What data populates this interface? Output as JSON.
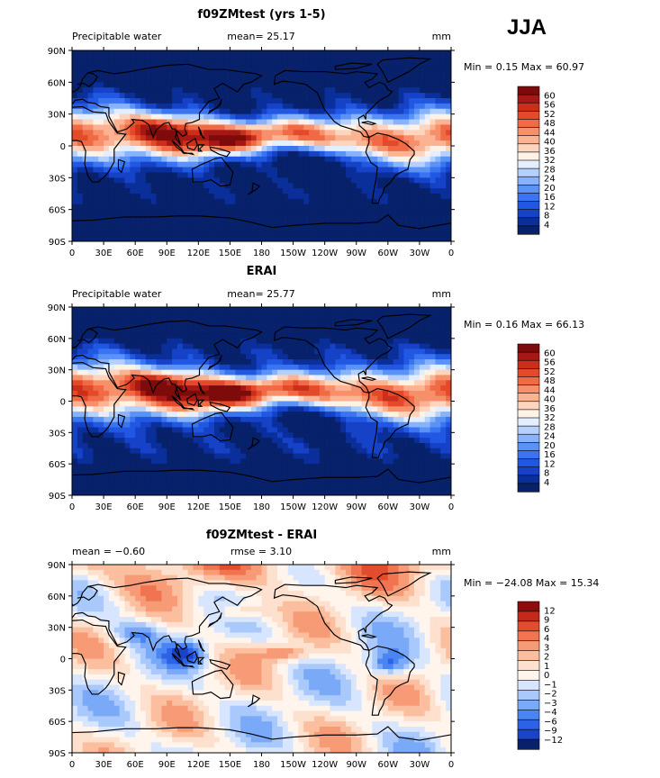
{
  "season": "JJA",
  "palette_main": [
    "#08216b",
    "#0b2f9a",
    "#1642c8",
    "#2158e3",
    "#3a74f0",
    "#5a92f6",
    "#86b3fb",
    "#b4d1fd",
    "#e3eefe",
    "#fef1e6",
    "#fdd4bd",
    "#fbb393",
    "#f7906a",
    "#f06a46",
    "#e44a2a",
    "#cb2f1a",
    "#a51813",
    "#7e0b0b"
  ],
  "palette_diff": [
    "#08216b",
    "#1a44c8",
    "#2d62e6",
    "#4b85f2",
    "#7aa9f8",
    "#a9c9fc",
    "#d7e6fe",
    "#fff5ec",
    "#fde0cd",
    "#fbbf9f",
    "#f79a76",
    "#f07450",
    "#e14d2d",
    "#c4291a",
    "#8f0c0c"
  ],
  "panels": [
    {
      "title": "f09ZMtest (yrs 1-5)",
      "left_label": "Precipitable water",
      "center_label": "mean=  25.17",
      "units": "mm",
      "minmax": "Min =   0.15 Max =  60.97",
      "colorbar_labels": [
        "60",
        "56",
        "52",
        "48",
        "44",
        "40",
        "36",
        "32",
        "28",
        "24",
        "20",
        "16",
        "12",
        "8",
        "4"
      ],
      "x_ticks": [
        "0",
        "30E",
        "60E",
        "90E",
        "120E",
        "150E",
        "180",
        "150W",
        "120W",
        "90W",
        "60W",
        "30W",
        "0"
      ],
      "y_ticks": [
        "90N",
        "60N",
        "30N",
        "0",
        "30S",
        "60S",
        "90S"
      ]
    },
    {
      "title": "ERAI",
      "left_label": "Precipitable water",
      "center_label": "mean=  25.77",
      "units": "mm",
      "minmax": "Min =   0.16 Max =  66.13",
      "colorbar_labels": [
        "60",
        "56",
        "52",
        "48",
        "44",
        "40",
        "36",
        "32",
        "28",
        "24",
        "20",
        "16",
        "12",
        "8",
        "4"
      ],
      "x_ticks": [
        "0",
        "30E",
        "60E",
        "90E",
        "120E",
        "150E",
        "180",
        "150W",
        "120W",
        "90W",
        "60W",
        "30W",
        "0"
      ],
      "y_ticks": [
        "90N",
        "60N",
        "30N",
        "0",
        "30S",
        "60S",
        "90S"
      ]
    },
    {
      "title": "f09ZMtest - ERAI",
      "left_label": "mean =  −0.60",
      "center_label": "rmse =   3.10",
      "units": "mm",
      "minmax": "Min = −24.08 Max =  15.34",
      "colorbar_labels": [
        "12",
        "9",
        "6",
        "4",
        "3",
        "2",
        "1",
        "0",
        "−1",
        "−2",
        "−3",
        "−4",
        "−6",
        "−9",
        "−12"
      ],
      "x_ticks": [
        "0",
        "30E",
        "60E",
        "90E",
        "120E",
        "150E",
        "180",
        "150W",
        "120W",
        "90W",
        "60W",
        "30W",
        "0"
      ],
      "y_ticks": [
        "90N",
        "60N",
        "30N",
        "0",
        "30S",
        "60S",
        "90S"
      ]
    }
  ]
}
